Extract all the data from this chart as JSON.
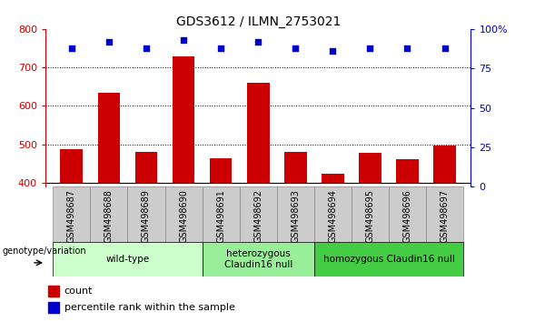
{
  "title": "GDS3612 / ILMN_2753021",
  "samples": [
    "GSM498687",
    "GSM498688",
    "GSM498689",
    "GSM498690",
    "GSM498691",
    "GSM498692",
    "GSM498693",
    "GSM498694",
    "GSM498695",
    "GSM498696",
    "GSM498697"
  ],
  "bar_values": [
    487,
    635,
    480,
    728,
    465,
    660,
    480,
    425,
    478,
    462,
    498
  ],
  "percentile_values": [
    88,
    92,
    88,
    93,
    88,
    92,
    88,
    86,
    88,
    88,
    88
  ],
  "bar_color": "#cc0000",
  "dot_color": "#0000cc",
  "ylim_left": [
    390,
    800
  ],
  "ylim_right": [
    0,
    100
  ],
  "yticks_left": [
    400,
    500,
    600,
    700,
    800
  ],
  "yticks_right": [
    0,
    25,
    50,
    75,
    100
  ],
  "ytick_right_labels": [
    "0",
    "25",
    "50",
    "75",
    "100%"
  ],
  "groups": [
    {
      "label": "wild-type",
      "start": 0,
      "end": 3,
      "color": "#ccffcc"
    },
    {
      "label": "heterozygous\nClaudin16 null",
      "start": 4,
      "end": 6,
      "color": "#99ee99"
    },
    {
      "label": "homozygous Claudin16 null",
      "start": 7,
      "end": 10,
      "color": "#44cc44"
    }
  ],
  "xlabel_genotype": "genotype/variation",
  "legend_count": "count",
  "legend_percentile": "percentile rank within the sample",
  "left_tick_color": "#cc0000",
  "right_tick_color": "#0000cc",
  "bar_width": 0.6,
  "tick_box_color": "#cccccc",
  "tick_box_edge": "#888888",
  "grid_yticks": [
    500,
    600,
    700
  ],
  "baseline": 400
}
